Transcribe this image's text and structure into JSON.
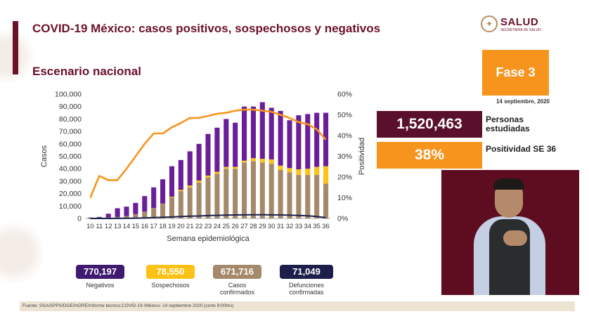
{
  "header": {
    "title": "COVID-19 México: casos positivos, sospechosos y negativos",
    "subtitle": "Escenario nacional"
  },
  "logo": {
    "name": "SALUD",
    "sub": "SECRETARÍA DE SALUD"
  },
  "phase": {
    "label": "Fase 3",
    "date": "14 septiembre, 2020"
  },
  "stats": [
    {
      "value": "1,520,463",
      "label": "Personas estudiadas",
      "color": "#5a0f2b"
    },
    {
      "value": "38%",
      "label": "Positividad SE 36",
      "color": "#f7941d"
    }
  ],
  "totals": [
    {
      "value": "770,197",
      "label": "Negativos",
      "bg": "#ffffff",
      "fg": "#3f1a6e",
      "border": "#ffffff"
    },
    {
      "value": "78,550",
      "label": "Sospechosos",
      "bg": "#fdc215",
      "fg": "#ffffff",
      "border": "#fdc215"
    },
    {
      "value": "671,716",
      "label": "Casos confirmados",
      "bg": "#a48a6a",
      "fg": "#ffffff",
      "border": "#a48a6a"
    },
    {
      "value": "71,049",
      "label": "Defunciones confirmadas",
      "bg": "#1b1f4a",
      "fg": "#ffffff",
      "border": "#1b1f4a"
    }
  ],
  "source": "Fuente: SSA/SPPS/DGE/InDRE/Informe técnico.COVID-19 /México- 14 septiembre 2020 (corte 9:00hrs)",
  "chart_data": {
    "type": "bar",
    "stacked": true,
    "xlabel": "Semana epidemiológica",
    "ylabel": "Casos",
    "y2label": "Positividad",
    "ylim": [
      0,
      100000
    ],
    "y2lim": [
      0,
      60
    ],
    "yticks": [
      "0",
      "10,000",
      "20,000",
      "30,000",
      "40,000",
      "50,000",
      "60,000",
      "70,000",
      "80,000",
      "90,000",
      "100,000"
    ],
    "y2ticks": [
      "0%",
      "10%",
      "20%",
      "30%",
      "40%",
      "50%",
      "60%"
    ],
    "categories": [
      "10",
      "11",
      "12",
      "13",
      "14",
      "15",
      "16",
      "17",
      "18",
      "19",
      "20",
      "21",
      "22",
      "23",
      "24",
      "25",
      "26",
      "27",
      "28",
      "29",
      "30",
      "31",
      "32",
      "33",
      "34",
      "35",
      "36"
    ],
    "series": [
      {
        "name": "Casos confirmados",
        "color": "#a48a6a",
        "values": [
          200,
          400,
          800,
          1200,
          2000,
          3500,
          5500,
          8500,
          12000,
          17000,
          22000,
          25000,
          29000,
          33000,
          36000,
          40000,
          40000,
          45000,
          46000,
          45000,
          44000,
          39000,
          37000,
          35000,
          35000,
          35000,
          28000
        ]
      },
      {
        "name": "Sospechosos",
        "color": "#fdc215",
        "values": [
          0,
          0,
          0,
          0,
          0,
          0,
          0,
          0,
          0,
          500,
          1000,
          1500,
          1500,
          1500,
          1500,
          1500,
          1500,
          1500,
          2500,
          3000,
          3500,
          3500,
          3500,
          4500,
          5000,
          6500,
          14000
        ]
      },
      {
        "name": "Negativos",
        "color": "#6a1e9a",
        "values": [
          500,
          800,
          3000,
          7000,
          7500,
          9000,
          12500,
          16500,
          19500,
          24500,
          24000,
          27500,
          29500,
          33500,
          35500,
          38500,
          35500,
          43500,
          41500,
          45500,
          41500,
          44000,
          38500,
          43500,
          44000,
          43500,
          43000
        ]
      }
    ],
    "lines": [
      {
        "name": "Defunciones",
        "color": "#1b1f4a",
        "axis": "left",
        "values": [
          0,
          0,
          0,
          50,
          100,
          250,
          400,
          650,
          900,
          1200,
          1500,
          1800,
          2000,
          2300,
          2500,
          2700,
          2800,
          2900,
          2950,
          2950,
          2900,
          2800,
          2600,
          2400,
          2100,
          1500,
          600
        ]
      },
      {
        "name": "Positividad",
        "color": "#f7941d",
        "axis": "right",
        "values": [
          10,
          20.5,
          18.5,
          18.5,
          24,
          30,
          36,
          41,
          41,
          44,
          46,
          48.5,
          48.5,
          49.5,
          50.5,
          51,
          52,
          52.5,
          52.5,
          52,
          51.5,
          50,
          48.5,
          46.5,
          45.5,
          43,
          38
        ]
      }
    ]
  }
}
